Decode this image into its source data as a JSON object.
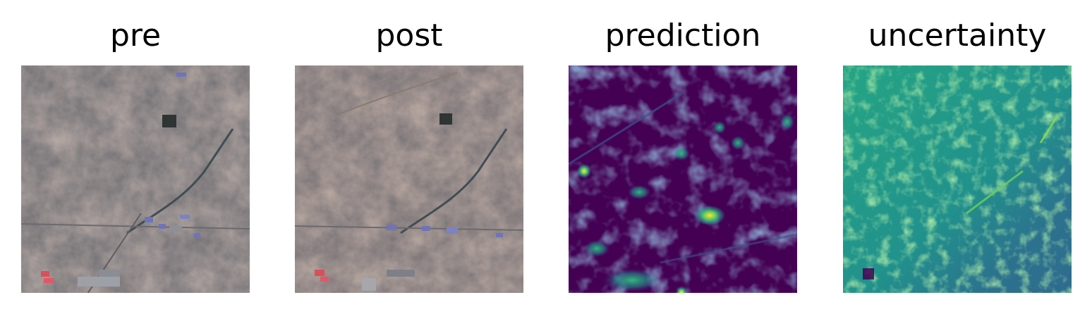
{
  "panels": [
    {
      "title": "pre"
    },
    {
      "title": "post"
    },
    {
      "title": "prediction"
    },
    {
      "title": "uncertainty"
    }
  ],
  "colors": {
    "satellite_base": "#4f5056",
    "satellite_brown": "#6e5c52",
    "satellite_dark": "#34383a",
    "satellite_blue": "#6f74b8",
    "satellite_red": "#d8505c",
    "viridis_dark": "#440154",
    "viridis_blue": "#3b528b",
    "viridis_teal": "#21918c",
    "viridis_green": "#5ec962",
    "viridis_yellow": "#fde725"
  }
}
